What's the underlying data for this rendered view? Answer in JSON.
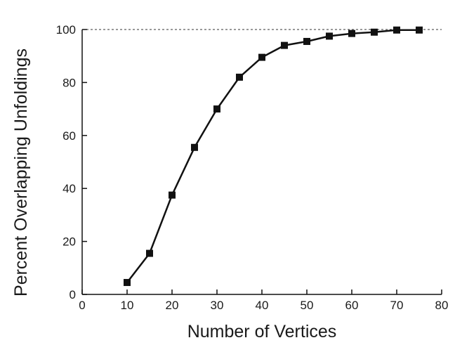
{
  "chart_data": {
    "type": "line",
    "title": "",
    "xlabel": "Number of Vertices",
    "ylabel": "Percent Overlapping Unfoldings",
    "xlim": [
      0,
      80
    ],
    "ylim": [
      0,
      100
    ],
    "x_ticks": [
      0,
      10,
      20,
      30,
      40,
      50,
      60,
      70,
      80
    ],
    "y_ticks": [
      0,
      20,
      40,
      60,
      80,
      100
    ],
    "x_tick_labels": [
      "0",
      "10",
      "20",
      "30",
      "40",
      "50",
      "60",
      "70",
      "80"
    ],
    "y_tick_labels": [
      "0",
      "20",
      "40",
      "60",
      "80",
      "100"
    ],
    "grid": false,
    "reference_line": {
      "y": 100,
      "style": "dashed"
    },
    "series": [
      {
        "x": [
          10,
          15,
          20,
          25,
          30,
          35,
          40,
          45,
          50,
          55,
          60,
          65,
          70,
          75
        ],
        "values": [
          4.5,
          15.5,
          37.5,
          55.5,
          70,
          82,
          89.5,
          94,
          95.5,
          97.5,
          98.5,
          99,
          99.8,
          99.8
        ],
        "color": "#111111",
        "marker": "square"
      }
    ]
  }
}
